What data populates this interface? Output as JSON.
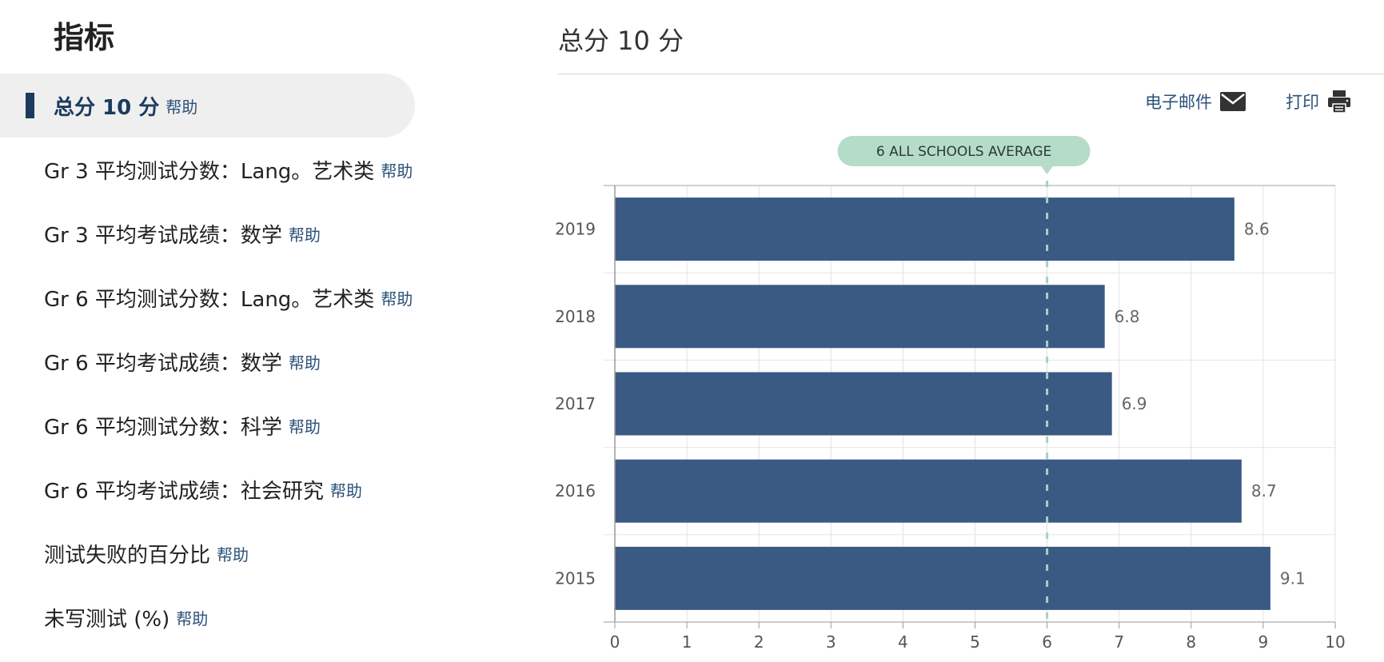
{
  "sidebar": {
    "title": "指标",
    "items": [
      {
        "label": "总分 10 分",
        "help": "帮助",
        "active": true
      },
      {
        "label": "Gr 3 平均测试分数：Lang。艺术类",
        "help": "帮助"
      },
      {
        "label": "Gr 3 平均考试成绩：数学",
        "help": "帮助"
      },
      {
        "label": "Gr 6 平均测试分数：Lang。艺术类",
        "help": "帮助"
      },
      {
        "label": "Gr 6 平均考试成绩：数学",
        "help": "帮助"
      },
      {
        "label": "Gr 6 平均测试分数：科学",
        "help": "帮助"
      },
      {
        "label": "Gr 6 平均考试成绩：社会研究",
        "help": "帮助"
      },
      {
        "label": "测试失败的百分比",
        "help": "帮助"
      },
      {
        "label": "未写测试 (%)",
        "help": "帮助"
      }
    ]
  },
  "main": {
    "title": "总分 10 分",
    "email_label": "电子邮件",
    "print_label": "打印"
  },
  "colors": {
    "bar": "#3a5a84",
    "average_line": "#9fd5c2",
    "average_badge": "#b5dcc8",
    "active_accent": "#1c3a5e",
    "link": "#2b5279"
  },
  "chart_data": {
    "type": "bar",
    "orientation": "horizontal",
    "categories": [
      "2019",
      "2018",
      "2017",
      "2016",
      "2015"
    ],
    "values": [
      8.6,
      6.8,
      6.9,
      8.7,
      9.1
    ],
    "xlim": [
      0,
      10
    ],
    "xticks": [
      0,
      1,
      2,
      3,
      4,
      5,
      6,
      7,
      8,
      9,
      10
    ],
    "grid": true,
    "average": {
      "value": 6,
      "label": "6 ALL SCHOOLS AVERAGE"
    }
  }
}
